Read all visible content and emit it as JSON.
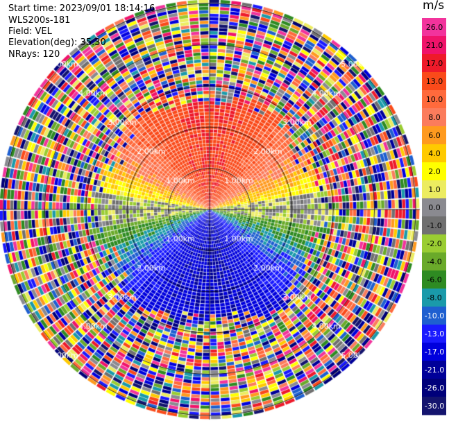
{
  "header": {
    "start_time": "Start time: 2023/09/01 18:14:16",
    "instrument": "WLS200s-181",
    "field": "Field: VEL",
    "elevation": "Elevation(deg): 35.30",
    "nrays": "NRays: 120"
  },
  "colorbar": {
    "unit": "m/s",
    "ticks": [
      "26.0",
      "21.0",
      "17.0",
      "13.0",
      "10.0",
      "8.0",
      "6.0",
      "4.0",
      "2.0",
      "1.0",
      "0.0",
      "-1.0",
      "-2.0",
      "-4.0",
      "-6.0",
      "-8.0",
      "-10.0",
      "-13.0",
      "-17.0",
      "-21.0",
      "-26.0",
      "-30.0"
    ],
    "colors": [
      "#f2339c",
      "#f0136a",
      "#ee1a2a",
      "#fa4a1a",
      "#ff6a3c",
      "#fb7c5c",
      "#ff9a1e",
      "#ffca00",
      "#ffff00",
      "#ecec60",
      "#8a8a90",
      "#707070",
      "#9acd32",
      "#6aaa2a",
      "#2e8b22",
      "#1a9aaa",
      "#1e5fd0",
      "#1a1aff",
      "#0000dd",
      "#000099",
      "#00007a",
      "#14146e"
    ]
  },
  "chart_data": {
    "type": "ppi",
    "field": "VEL",
    "units": "m/s",
    "nrays": 120,
    "range_rings_km": [
      1.0,
      2.0,
      3.0,
      4.0,
      5.0
    ],
    "ring_labels": [
      "1.00km",
      "2.00km",
      "3.00km",
      "4.00km",
      "5.00km"
    ],
    "max_range_km": 5.1,
    "valid_range_km": 2.85,
    "velocity_pattern": {
      "north_sector": "positive 13 to 21 m/s",
      "east_west_horizon": "near 0 m/s",
      "south_sector": "negative -13 to -21 m/s",
      "beyond_valid_range": "noise (random values)"
    }
  }
}
